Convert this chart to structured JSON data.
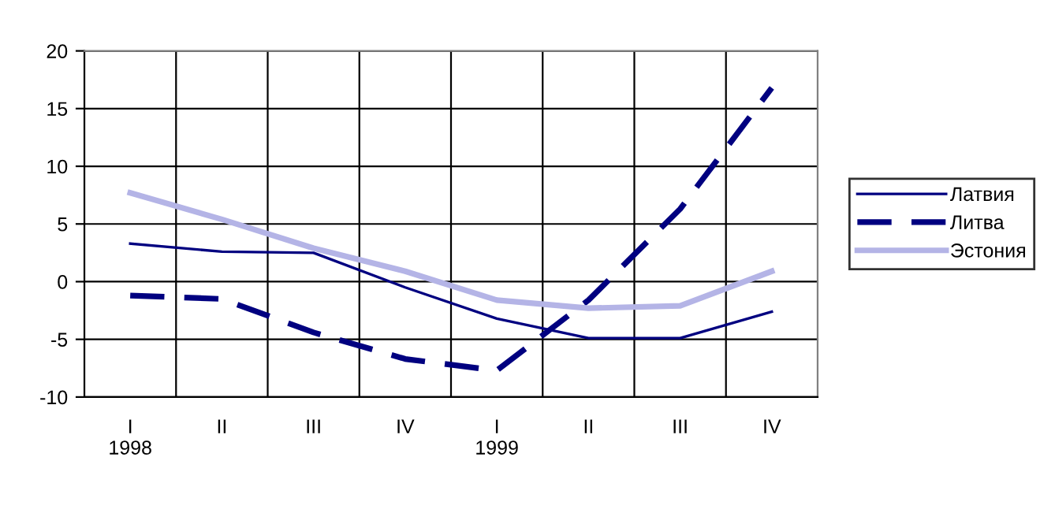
{
  "chart_data": {
    "type": "line",
    "categories": [
      "I\n1998",
      "II",
      "III",
      "IV",
      "I\n1999",
      "II",
      "III",
      "IV"
    ],
    "series": [
      {
        "name": "Латвия",
        "color": "#000080",
        "line_style": "solid",
        "values": [
          3.3,
          2.6,
          2.5,
          -0.5,
          -3.2,
          -4.9,
          -4.9,
          -2.6
        ]
      },
      {
        "name": "Литва",
        "color": "#000080",
        "line_style": "dashed",
        "values": [
          -1.2,
          -1.5,
          -4.4,
          -6.7,
          -7.7,
          -1.6,
          6.3,
          16.8
        ]
      },
      {
        "name": "Эстония",
        "color": "#b4b4e6",
        "line_style": "solid",
        "values": [
          7.7,
          5.4,
          2.9,
          0.9,
          -1.6,
          -2.3,
          -2.1,
          0.9
        ]
      }
    ],
    "ylim": [
      -10,
      20
    ],
    "yticks": [
      -10,
      -5,
      0,
      5,
      10,
      15,
      20
    ],
    "grid": true,
    "legend": "right",
    "marker": "none"
  }
}
